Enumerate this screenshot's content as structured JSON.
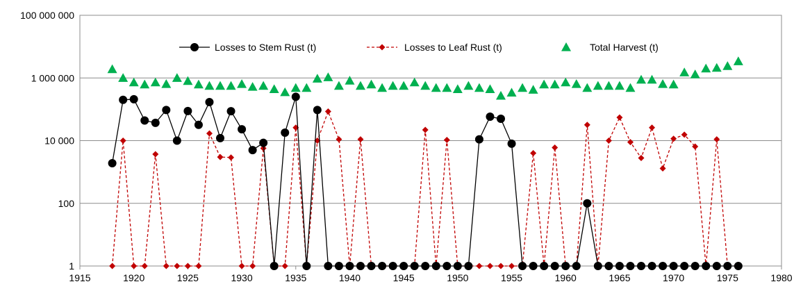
{
  "chart_data": {
    "type": "line",
    "scale": "log",
    "xlim": [
      1915,
      1980
    ],
    "ylim": [
      1,
      100000000
    ],
    "x_ticks": [
      1915,
      1920,
      1925,
      1930,
      1935,
      1940,
      1945,
      1950,
      1955,
      1960,
      1965,
      1970,
      1975,
      1980
    ],
    "x_tick_labels": [
      "1915",
      "1920",
      "1925",
      "1930",
      "1935",
      "1940",
      "1945",
      "1950",
      "1955",
      "1960",
      "1965",
      "1970",
      "1975",
      "1980"
    ],
    "y_ticks": [
      1,
      100,
      10000,
      1000000,
      100000000
    ],
    "y_tick_labels": [
      "1",
      "100",
      "10 000",
      "1 000 000",
      "100 000 000"
    ],
    "grid": true,
    "legend_position": "top",
    "series": [
      {
        "name": "Losses to Stem Rust (t)",
        "style": "solid-line-circle",
        "color": "#000000",
        "x": [
          1918,
          1919,
          1920,
          1921,
          1922,
          1923,
          1924,
          1925,
          1926,
          1927,
          1928,
          1929,
          1930,
          1931,
          1932,
          1933,
          1934,
          1935,
          1936,
          1937,
          1938,
          1939,
          1940,
          1941,
          1942,
          1943,
          1944,
          1945,
          1946,
          1947,
          1948,
          1949,
          1950,
          1951,
          1952,
          1953,
          1954,
          1955,
          1956,
          1957,
          1958,
          1959,
          1960,
          1961,
          1962,
          1963,
          1964,
          1965,
          1966,
          1967,
          1968,
          1969,
          1970,
          1971,
          1972,
          1973,
          1974,
          1975,
          1976
        ],
        "y": [
          1900,
          200000,
          210000,
          44000,
          37000,
          95000,
          10000,
          88000,
          32000,
          170000,
          12000,
          87000,
          23000,
          5000,
          8500,
          1,
          18000,
          250000,
          1,
          95000,
          1,
          1,
          1,
          1,
          1,
          1,
          1,
          1,
          1,
          1,
          1,
          1,
          1,
          1,
          11000,
          58000,
          50000,
          8000,
          1,
          1,
          1,
          1,
          1,
          1,
          100,
          1,
          1,
          1,
          1,
          1,
          1,
          1,
          1,
          1,
          1,
          1,
          1,
          1,
          1
        ]
      },
      {
        "name": "Losses to Leaf Rust (t)",
        "style": "dashed-line-diamond",
        "color": "#c00000",
        "x": [
          1918,
          1919,
          1920,
          1921,
          1922,
          1923,
          1924,
          1925,
          1926,
          1927,
          1928,
          1929,
          1930,
          1931,
          1932,
          1933,
          1934,
          1935,
          1936,
          1937,
          1938,
          1939,
          1940,
          1941,
          1942,
          1943,
          1944,
          1945,
          1946,
          1947,
          1948,
          1949,
          1950,
          1951,
          1952,
          1953,
          1954,
          1955,
          1956,
          1957,
          1958,
          1959,
          1960,
          1961,
          1962,
          1963,
          1964,
          1965,
          1966,
          1967,
          1968,
          1969,
          1970,
          1971,
          1972,
          1973,
          1974,
          1975,
          1976
        ],
        "y": [
          1,
          10000,
          1,
          1,
          3700,
          1,
          1,
          1,
          1,
          17000,
          3000,
          2900,
          1,
          1,
          5700,
          1,
          1,
          26000,
          1,
          10000,
          85000,
          11000,
          1,
          11000,
          1,
          1,
          1,
          1,
          1,
          22000,
          1,
          10500,
          1,
          1,
          1,
          1,
          1,
          1,
          1,
          4000,
          1,
          6000,
          1,
          1,
          32000,
          1,
          10000,
          55000,
          9000,
          2800,
          26000,
          1300,
          11500,
          15500,
          6500,
          1,
          11000,
          1,
          1
        ]
      },
      {
        "name": "Total Harvest (t)",
        "style": "markers-triangle",
        "color": "#00b050",
        "x": [
          1918,
          1919,
          1920,
          1921,
          1922,
          1923,
          1924,
          1925,
          1926,
          1927,
          1928,
          1929,
          1930,
          1931,
          1932,
          1933,
          1934,
          1935,
          1936,
          1937,
          1938,
          1939,
          1940,
          1941,
          1942,
          1943,
          1944,
          1945,
          1946,
          1947,
          1948,
          1949,
          1950,
          1951,
          1952,
          1953,
          1954,
          1955,
          1956,
          1957,
          1958,
          1959,
          1960,
          1961,
          1962,
          1963,
          1964,
          1965,
          1966,
          1967,
          1968,
          1969,
          1970,
          1971,
          1972,
          1973,
          1974,
          1975,
          1976
        ],
        "y": [
          1900000,
          1000000,
          720000,
          620000,
          720000,
          640000,
          1000000,
          800000,
          620000,
          560000,
          560000,
          560000,
          640000,
          520000,
          560000,
          440000,
          350000,
          480000,
          480000,
          950000,
          1050000,
          560000,
          820000,
          560000,
          620000,
          480000,
          560000,
          560000,
          720000,
          560000,
          480000,
          480000,
          440000,
          560000,
          480000,
          440000,
          270000,
          340000,
          480000,
          420000,
          620000,
          620000,
          720000,
          640000,
          480000,
          560000,
          560000,
          560000,
          480000,
          880000,
          880000,
          640000,
          620000,
          1500000,
          1300000,
          2000000,
          2100000,
          2400000,
          3400000
        ]
      }
    ]
  }
}
